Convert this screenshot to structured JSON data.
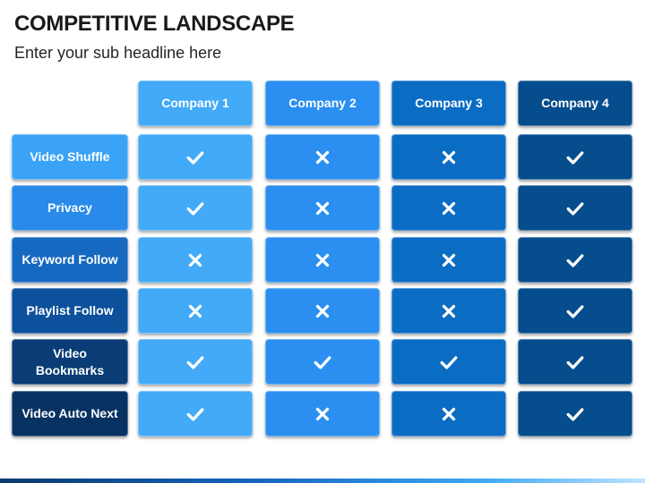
{
  "header": {
    "title": "COMPETITIVE LANDSCAPE",
    "subtitle": "Enter your sub headline here"
  },
  "colors": {
    "company_1": "#42aaf7",
    "company_2": "#2a8ff0",
    "company_3": "#0b6cc4",
    "company_4": "#054d8c",
    "feature_labels": [
      "#3aa3f5",
      "#2a8aea",
      "#1669c0",
      "#0d519c",
      "#0a3d75",
      "#083262"
    ]
  },
  "companies": [
    {
      "label": "Company 1"
    },
    {
      "label": "Company 2"
    },
    {
      "label": "Company 3"
    },
    {
      "label": "Company 4"
    }
  ],
  "features": [
    {
      "label": "Video Shuffle",
      "marks": [
        "check-icon",
        "cross-icon",
        "cross-icon",
        "check-icon"
      ]
    },
    {
      "label": "Privacy",
      "marks": [
        "check-icon",
        "cross-icon",
        "cross-icon",
        "check-icon"
      ]
    },
    {
      "label": "Keyword Follow",
      "marks": [
        "cross-icon",
        "cross-icon",
        "cross-icon",
        "check-icon"
      ]
    },
    {
      "label": "Playlist Follow",
      "marks": [
        "cross-icon",
        "cross-icon",
        "cross-icon",
        "check-icon"
      ]
    },
    {
      "label": "Video Bookmarks",
      "marks": [
        "check-icon",
        "check-icon",
        "check-icon",
        "check-icon"
      ]
    },
    {
      "label": "Video Auto Next",
      "marks": [
        "check-icon",
        "cross-icon",
        "cross-icon",
        "check-icon"
      ]
    }
  ]
}
